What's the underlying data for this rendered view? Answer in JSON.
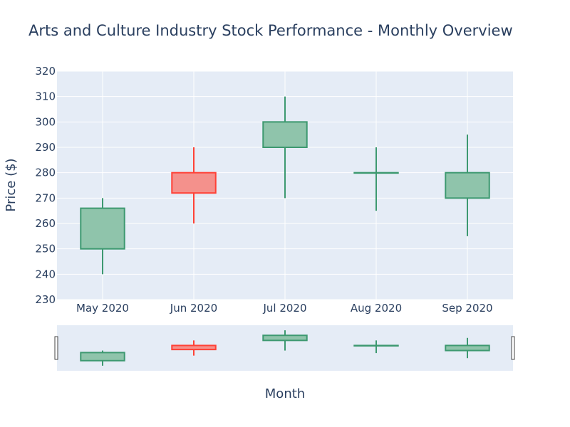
{
  "chart_data": {
    "type": "candlestick",
    "title": "Arts and Culture Industry Stock Performance - Monthly Overview",
    "xlabel": "Month",
    "ylabel": "Price ($)",
    "ylim": [
      230,
      320
    ],
    "yticks": [
      230,
      240,
      250,
      260,
      270,
      280,
      290,
      300,
      310,
      320
    ],
    "grid": true,
    "range_slider": true,
    "categories": [
      "May 2020",
      "Jun 2020",
      "Jul 2020",
      "Aug 2020",
      "Sep 2020"
    ],
    "candles": [
      {
        "x": "May 2020",
        "open": 250,
        "high": 270,
        "low": 240,
        "close": 266
      },
      {
        "x": "Jun 2020",
        "open": 280,
        "high": 290,
        "low": 260,
        "close": 272
      },
      {
        "x": "Jul 2020",
        "open": 290,
        "high": 310,
        "low": 270,
        "close": 300
      },
      {
        "x": "Aug 2020",
        "open": 280,
        "high": 290,
        "low": 265,
        "close": 280
      },
      {
        "x": "Sep 2020",
        "open": 270,
        "high": 295,
        "low": 255,
        "close": 280
      }
    ],
    "colors": {
      "increasing_line": "#3D9970",
      "increasing_fill": "#8fc4ab",
      "decreasing_line": "#FF4136",
      "decreasing_fill": "#f4918c",
      "plot_background": "#E5ECF6",
      "grid": "#ffffff",
      "text": "#2a3f5f"
    }
  }
}
